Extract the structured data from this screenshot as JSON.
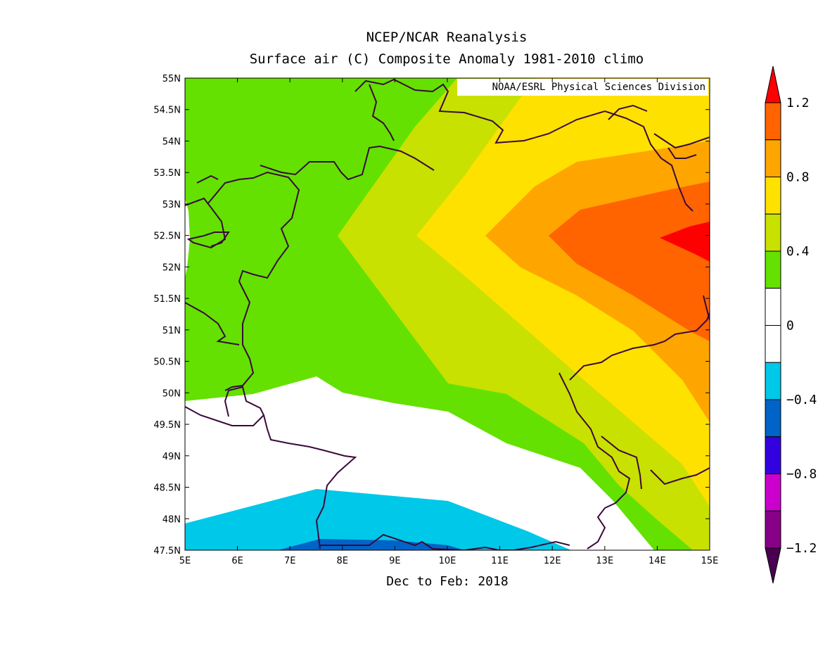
{
  "title_line1": "NCEP/NCAR Reanalysis",
  "title_line2": "Surface air (C) Composite Anomaly 1981-2010 climo",
  "credit": "NOAA/ESRL Physical Sciences Division",
  "xlabel": "Dec to Feb: 2018",
  "chart_data": {
    "type": "heatmap",
    "variable": "Surface air (C) Composite Anomaly",
    "lon_range": [
      5,
      15
    ],
    "lat_range": [
      47.5,
      55
    ],
    "x_ticks": [
      "5E",
      "6E",
      "7E",
      "8E",
      "9E",
      "10E",
      "11E",
      "12E",
      "13E",
      "14E",
      "15E"
    ],
    "y_ticks": [
      "55N",
      "54.5N",
      "54N",
      "53.5N",
      "53N",
      "52.5N",
      "52N",
      "51.5N",
      "51N",
      "50.5N",
      "50N",
      "49.5N",
      "49N",
      "48.5N",
      "48N",
      "47.5N"
    ],
    "colorbar_levels": [
      -1.2,
      -1.0,
      -0.8,
      -0.6,
      -0.4,
      -0.2,
      0.0,
      0.2,
      0.4,
      0.6,
      0.8,
      1.0,
      1.2
    ],
    "colorbar_labels": [
      "1.2",
      "0.8",
      "0.4",
      "0",
      "−0.4",
      "−0.8",
      "−1.2"
    ],
    "colors": {
      "below_-1.2": "#4a0050",
      "-1.2_-1.0": "#870087",
      "-1.0_-0.8": "#cc00cc",
      "-0.8_-0.6": "#3300e0",
      "-0.6_-0.4": "#0063c8",
      "-0.4_-0.2": "#00c8e8",
      "-0.2_0.2": "#ffffff",
      "0.2_0.4": "#64e100",
      "0.4_0.6": "#c8e100",
      "0.6_0.8": "#ffe100",
      "0.8_1.0": "#ffa500",
      "1.0_1.2": "#ff6400",
      "above_1.2": "#ff0000"
    },
    "anomaly_regions": [
      {
        "range": "1.2 and above",
        "location": "around 14E-15E, 52-53N"
      },
      {
        "range": "1.0 to 1.2",
        "location": "eastern edge near 12E-15E, 51-53N"
      },
      {
        "range": "0.2 to 0.4",
        "location": "western and northern-western areas 5E-10E, 50-55N"
      },
      {
        "range": "-0.2 to 0.2",
        "location": "southwest band 5E-13E, 48-50N"
      },
      {
        "range": "-0.4 to -0.2",
        "location": "south near 5E-12E, 47.5-48.5N"
      },
      {
        "range": "-0.6 to -0.4",
        "location": "far south near 7.5E-10E, 47.5N"
      }
    ]
  }
}
